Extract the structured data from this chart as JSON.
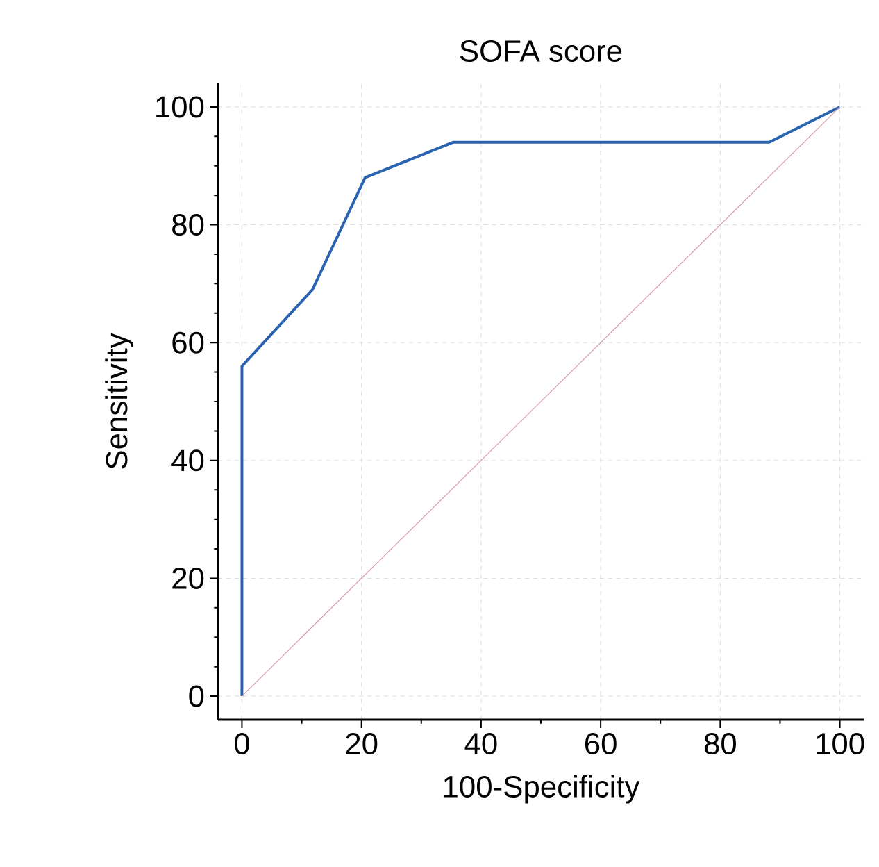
{
  "chart_data": {
    "type": "line",
    "title": "SOFA score",
    "xlabel": "100-Specificity",
    "ylabel": "Sensitivity",
    "series": [
      {
        "x": [
          0,
          0,
          11.8,
          20.6,
          35.3,
          88.2,
          100
        ],
        "values": [
          0,
          56,
          69,
          88,
          94,
          94,
          100
        ],
        "color": "#2a63b2"
      },
      {
        "x": [
          0,
          100
        ],
        "values": [
          0,
          100
        ],
        "color": "#d99aa6"
      }
    ],
    "xlim": [
      -4,
      104
    ],
    "ylim": [
      -4,
      104
    ],
    "xticks": [
      0,
      20,
      40,
      60,
      80,
      100
    ],
    "yticks": [
      0,
      20,
      40,
      60,
      80,
      100
    ],
    "grid": true,
    "marker": "none",
    "line_style": "solid"
  }
}
